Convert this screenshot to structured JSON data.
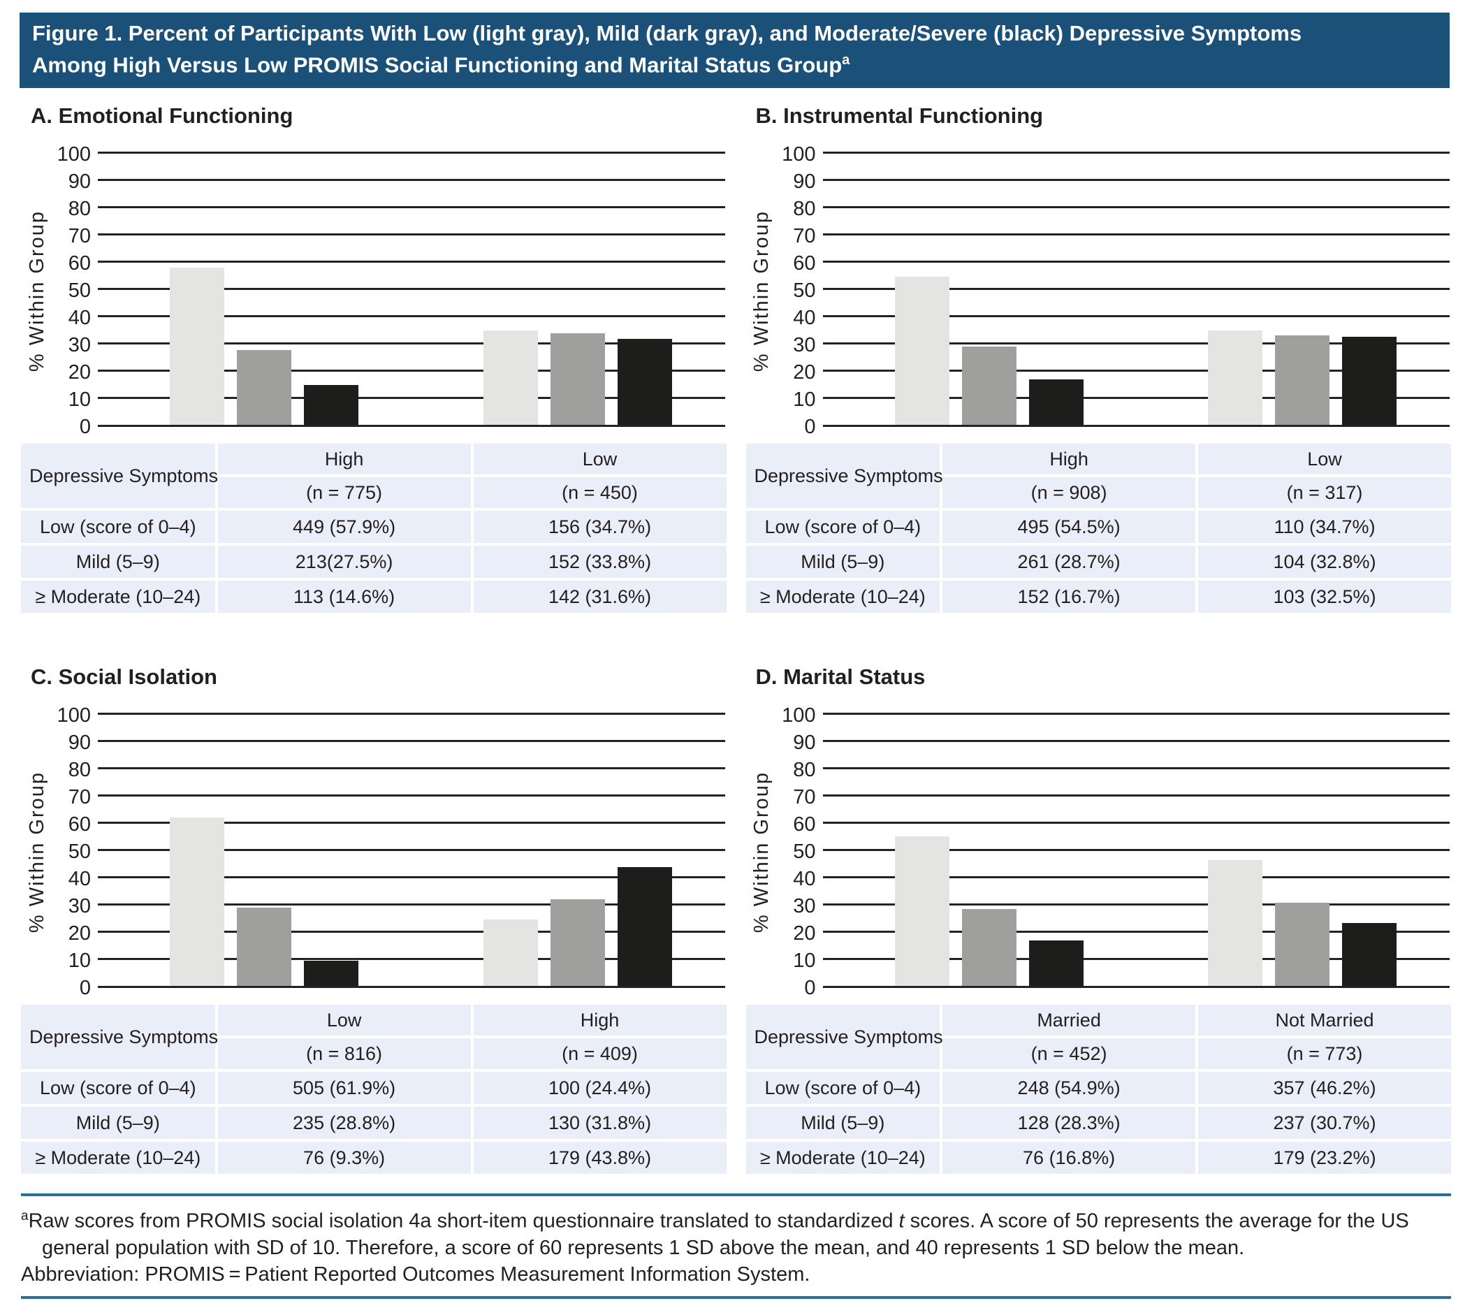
{
  "header": {
    "title_line1": "Figure 1. Percent of Participants With Low (light gray), Mild (dark gray), and Moderate/Severe (black) Depressive Symptoms",
    "title_line2": "Among High Versus Low PROMIS Social Functioning and Marital Status Group",
    "title_superscript": "a"
  },
  "colors": {
    "title_bar_bg": "#1b5178",
    "title_text": "#ffffff",
    "bar_light_gray": "#e4e4e3",
    "bar_dark_gray": "#9f9f9e",
    "bar_black": "#1d1d1b",
    "gridline": "#262223",
    "table_cell_bg": "#e9eef8",
    "footnote_rule_blue": "#2b6f99",
    "text": "#231f20"
  },
  "chart_data": [
    {
      "type": "bar",
      "panel": "A",
      "title": "A. Emotional Functioning",
      "ylabel": "% Within Group",
      "ylim": [
        0,
        100
      ],
      "ytick_step": 10,
      "grid": true,
      "categories": [
        "High",
        "Low"
      ],
      "series": [
        {
          "name": "Low (light gray)",
          "values": [
            57.9,
            34.7
          ]
        },
        {
          "name": "Mild (dark gray)",
          "values": [
            27.5,
            33.8
          ]
        },
        {
          "name": "Moderate/Severe (black)",
          "values": [
            14.6,
            31.6
          ]
        }
      ],
      "table": {
        "header_col": "Depressive Symptoms",
        "columns": [
          {
            "label": "High",
            "n": "(n = 775)"
          },
          {
            "label": "Low",
            "n": "(n = 450)"
          }
        ],
        "rows": [
          {
            "label": "Low (score of 0–4)",
            "cells": [
              "449 (57.9%)",
              "156 (34.7%)"
            ]
          },
          {
            "label": "Mild (5–9)",
            "cells": [
              "213(27.5%)",
              "152 (33.8%)"
            ]
          },
          {
            "label": "≥ Moderate (10–24)",
            "cells": [
              "113 (14.6%)",
              "142 (31.6%)"
            ]
          }
        ]
      }
    },
    {
      "type": "bar",
      "panel": "B",
      "title": "B. Instrumental Functioning",
      "ylabel": "% Within Group",
      "ylim": [
        0,
        100
      ],
      "ytick_step": 10,
      "grid": true,
      "categories": [
        "High",
        "Low"
      ],
      "series": [
        {
          "name": "Low (light gray)",
          "values": [
            54.5,
            34.7
          ]
        },
        {
          "name": "Mild (dark gray)",
          "values": [
            28.7,
            32.8
          ]
        },
        {
          "name": "Moderate/Severe (black)",
          "values": [
            16.7,
            32.5
          ]
        }
      ],
      "table": {
        "header_col": "Depressive Symptoms",
        "columns": [
          {
            "label": "High",
            "n": "(n = 908)"
          },
          {
            "label": "Low",
            "n": "(n = 317)"
          }
        ],
        "rows": [
          {
            "label": "Low (score of 0–4)",
            "cells": [
              "495 (54.5%)",
              "110 (34.7%)"
            ]
          },
          {
            "label": "Mild (5–9)",
            "cells": [
              "261 (28.7%)",
              "104 (32.8%)"
            ]
          },
          {
            "label": "≥ Moderate (10–24)",
            "cells": [
              "152 (16.7%)",
              "103 (32.5%)"
            ]
          }
        ]
      }
    },
    {
      "type": "bar",
      "panel": "C",
      "title": "C. Social Isolation",
      "ylabel": "% Within Group",
      "ylim": [
        0,
        100
      ],
      "ytick_step": 10,
      "grid": true,
      "categories": [
        "Low",
        "High"
      ],
      "series": [
        {
          "name": "Low (light gray)",
          "values": [
            61.9,
            24.4
          ]
        },
        {
          "name": "Mild (dark gray)",
          "values": [
            28.8,
            31.8
          ]
        },
        {
          "name": "Moderate/Severe (black)",
          "values": [
            9.3,
            43.8
          ]
        }
      ],
      "table": {
        "header_col": "Depressive Symptoms",
        "columns": [
          {
            "label": "Low",
            "n": "(n = 816)"
          },
          {
            "label": "High",
            "n": "(n = 409)"
          }
        ],
        "rows": [
          {
            "label": "Low (score of 0–4)",
            "cells": [
              "505 (61.9%)",
              "100 (24.4%)"
            ]
          },
          {
            "label": "Mild (5–9)",
            "cells": [
              "235 (28.8%)",
              "130 (31.8%)"
            ]
          },
          {
            "label": "≥ Moderate (10–24)",
            "cells": [
              "76 (9.3%)",
              "179 (43.8%)"
            ]
          }
        ]
      }
    },
    {
      "type": "bar",
      "panel": "D",
      "title": "D. Marital Status",
      "ylabel": "% Within Group",
      "ylim": [
        0,
        100
      ],
      "ytick_step": 10,
      "grid": true,
      "categories": [
        "Married",
        "Not Married"
      ],
      "series": [
        {
          "name": "Low (light gray)",
          "values": [
            54.9,
            46.2
          ]
        },
        {
          "name": "Mild (dark gray)",
          "values": [
            28.3,
            30.7
          ]
        },
        {
          "name": "Moderate/Severe (black)",
          "values": [
            16.8,
            23.2
          ]
        }
      ],
      "table": {
        "header_col": "Depressive Symptoms",
        "columns": [
          {
            "label": "Married",
            "n": "(n = 452)"
          },
          {
            "label": "Not Married",
            "n": "(n = 773)"
          }
        ],
        "rows": [
          {
            "label": "Low (score of 0–4)",
            "cells": [
              "248 (54.9%)",
              "357 (46.2%)"
            ]
          },
          {
            "label": "Mild (5–9)",
            "cells": [
              "128 (28.3%)",
              "237 (30.7%)"
            ]
          },
          {
            "label": "≥ Moderate (10–24)",
            "cells": [
              "76 (16.8%)",
              "179 (23.2%)"
            ]
          }
        ]
      }
    }
  ],
  "footnote": {
    "marker": "a",
    "line1_before_italic": "Raw scores from PROMIS social isolation 4a short-item questionnaire translated to standardized ",
    "line1_italic": "t",
    "line1_after_italic": " scores. A score of 50 represents the average for the US",
    "line2": "general population with SD of 10. Therefore, a score of 60 represents 1 SD above the mean, and 40 represents 1 SD below the mean.",
    "abbreviation": "Abbreviation: PROMIS = Patient Reported Outcomes Measurement Information System."
  }
}
